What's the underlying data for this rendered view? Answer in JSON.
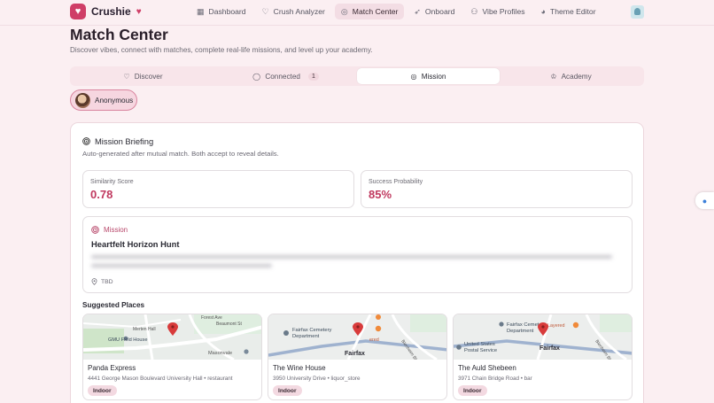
{
  "app": {
    "name": "Crushie",
    "heart": "♥",
    "logo_glyph": "♥"
  },
  "nav": [
    {
      "label": "Dashboard",
      "icon": "grid-icon",
      "glyph": "▦",
      "active": false
    },
    {
      "label": "Crush Analyzer",
      "icon": "heart-icon",
      "glyph": "♡",
      "active": false
    },
    {
      "label": "Match Center",
      "icon": "compass-icon",
      "glyph": "◎",
      "active": true
    },
    {
      "label": "Onboard",
      "icon": "rocket-icon",
      "glyph": "➶",
      "active": false
    },
    {
      "label": "Vibe Profiles",
      "icon": "users-icon",
      "glyph": "⚇",
      "active": false
    },
    {
      "label": "Theme Editor",
      "icon": "palette-icon",
      "glyph": "◕",
      "active": false
    }
  ],
  "page": {
    "title": "Match Center",
    "subtitle": "Discover vibes, connect with matches, complete real-life missions, and level up your academy."
  },
  "tabs": [
    {
      "label": "Discover",
      "icon": "heart-icon",
      "glyph": "♡",
      "badge": ""
    },
    {
      "label": "Connected",
      "icon": "chat-icon",
      "glyph": "◯",
      "badge": "1"
    },
    {
      "label": "Mission",
      "icon": "target-icon",
      "glyph": "◎",
      "badge": ""
    },
    {
      "label": "Academy",
      "icon": "crown-icon",
      "glyph": "♔",
      "badge": ""
    }
  ],
  "active_tab": "Mission",
  "match_chip": {
    "label": "Anonymous"
  },
  "briefing": {
    "title": "Mission Briefing",
    "subtitle": "Auto-generated after mutual match. Both accept to reveal details.",
    "stats": [
      {
        "label": "Similarity Score",
        "value": "0.78"
      },
      {
        "label": "Success Probability",
        "value": "85%"
      }
    ],
    "mission": {
      "tag": "Mission",
      "title": "Heartfelt Horizon Hunt",
      "location": "TBD"
    },
    "places_title": "Suggested Places",
    "places": [
      {
        "name": "Panda Express",
        "address": "4441 George Mason Boulevard University Hall • restaurant",
        "tag": "Indoor",
        "map_labels": [
          "Forest Ave",
          "Beaumont St",
          "Merten Hall",
          "GMU Field House",
          "Masonvale",
          "Campus Dr"
        ]
      },
      {
        "name": "The Wine House",
        "address": "3950 University Drive • liquor_store",
        "tag": "Indoor",
        "map_labels": [
          "Fairfax Cemetery",
          "Department",
          "Fairfax",
          "Blenheim Blvd",
          "ered"
        ]
      },
      {
        "name": "The Auld Shebeen",
        "address": "3971 Chain Bridge Road • bar",
        "tag": "Indoor",
        "map_labels": [
          "Fairfax Cemetery",
          "Department",
          "United States",
          "Postal Service",
          "Fairfax",
          "Blenheim Blvd",
          "Layered"
        ]
      }
    ]
  },
  "colors": {
    "accent": "#cf3e67",
    "value": "#c0395f",
    "background": "#fbeff2"
  }
}
